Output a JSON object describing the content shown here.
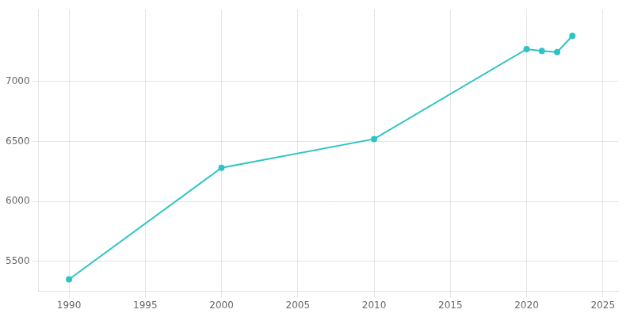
{
  "chart_data": {
    "type": "line",
    "x": [
      1990,
      2000,
      2010,
      2020,
      2021,
      2022,
      2023
    ],
    "values": [
      5350,
      6280,
      6520,
      7270,
      7255,
      7245,
      7380
    ],
    "color": "#2ec4c4",
    "marker": "circle",
    "xlim": [
      1988,
      2026
    ],
    "ylim": [
      5250,
      7600
    ],
    "xticks": [
      1990,
      1995,
      2000,
      2005,
      2010,
      2015,
      2020,
      2025
    ],
    "yticks": [
      5500,
      6000,
      6500,
      7000
    ],
    "grid": true
  }
}
